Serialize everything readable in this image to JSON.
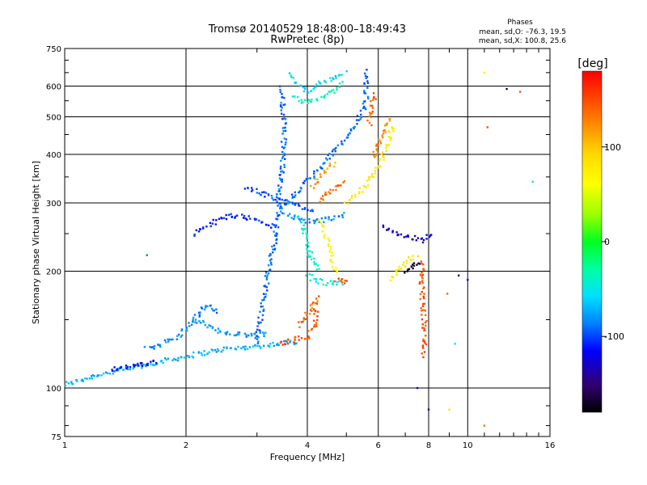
{
  "chart_data": {
    "type": "scatter",
    "title": "Tromsø 20140529 18:48:00–18:49:43",
    "subtitle": "RwPretec (8p)",
    "stats": {
      "heading": "Phases",
      "line1": "mean, sd,O: –76.3, 19.5",
      "line2": "mean, sd,X: 100.8, 25.6"
    },
    "xlabel": "Frequency [MHz]",
    "ylabel": "Stationary phase Virtual Height [km]",
    "xscale": "log",
    "yscale": "log",
    "xlim": [
      1,
      16
    ],
    "ylim": [
      75,
      750
    ],
    "xticks": [
      1,
      2,
      4,
      6,
      8,
      10,
      16
    ],
    "xtick_labels": [
      "1",
      "2",
      "4",
      "6",
      "8",
      "10",
      "16"
    ],
    "yticks": [
      75,
      100,
      200,
      300,
      400,
      500,
      600,
      750
    ],
    "ytick_labels": [
      "75",
      "100",
      "200",
      "300",
      "400",
      "500",
      "600",
      "750"
    ],
    "grid": true,
    "colorbar": {
      "label": "[deg]",
      "range": [
        -180,
        180
      ],
      "ticks": [
        100,
        0,
        -100
      ],
      "tick_labels": [
        "100",
        "0",
        "-100"
      ]
    },
    "traces": [
      {
        "x": [
          1.0,
          1.2,
          1.5,
          1.8,
          2.1,
          2.5,
          3.0,
          3.4,
          3.8
        ],
        "y": [
          102,
          108,
          113,
          118,
          122,
          126,
          128,
          130,
          132
        ],
        "phase": -75
      },
      {
        "x": [
          1.3,
          1.5,
          1.7
        ],
        "y": [
          112,
          114,
          117
        ],
        "phase": -120
      },
      {
        "x": [
          1.6,
          1.9,
          2.1,
          2.4,
          2.8,
          3.2
        ],
        "y": [
          126,
          135,
          150,
          140,
          137,
          138
        ],
        "phase": -85
      },
      {
        "x": [
          2.1,
          2.3,
          2.6,
          3.0,
          3.3
        ],
        "y": [
          250,
          265,
          280,
          272,
          260
        ],
        "phase": -110
      },
      {
        "x": [
          3.0,
          3.1,
          3.2,
          3.3,
          3.35,
          3.4,
          3.4,
          3.45,
          3.5,
          3.5,
          3.45
        ],
        "y": [
          130,
          165,
          200,
          230,
          260,
          290,
          320,
          350,
          400,
          500,
          600
        ],
        "phase": -95
      },
      {
        "x": [
          3.4,
          3.6,
          3.8,
          4.0,
          4.3,
          4.6,
          5.0,
          5.3,
          5.5,
          5.6,
          5.6,
          5.55
        ],
        "y": [
          290,
          305,
          320,
          340,
          370,
          400,
          440,
          480,
          520,
          560,
          620,
          660
        ],
        "phase": -95
      },
      {
        "x": [
          3.5,
          3.7,
          3.9,
          4.1,
          4.4,
          4.7,
          5.0
        ],
        "y": [
          285,
          275,
          270,
          268,
          271,
          276,
          282
        ],
        "phase": -85
      },
      {
        "x": [
          3.6,
          3.8,
          4.0,
          4.2,
          4.5,
          4.8,
          5.0
        ],
        "y": [
          640,
          600,
          585,
          600,
          620,
          640,
          650
        ],
        "phase": -60
      },
      {
        "x": [
          3.7,
          3.9,
          4.1,
          4.4,
          4.7,
          4.9
        ],
        "y": [
          560,
          545,
          550,
          565,
          590,
          620
        ],
        "phase": -40
      },
      {
        "x": [
          2.8,
          3.0,
          3.3,
          3.6,
          3.8,
          4.0,
          4.2
        ],
        "y": [
          330,
          320,
          310,
          300,
          295,
          290,
          287
        ],
        "phase": -100
      },
      {
        "x": [
          3.8,
          3.9,
          4.0,
          4.1,
          4.3
        ],
        "y": [
          280,
          260,
          235,
          215,
          200
        ],
        "phase": -45
      },
      {
        "x": [
          4.0,
          4.2,
          4.4,
          4.6,
          4.8,
          5.0
        ],
        "y": [
          195,
          190,
          187,
          186,
          187,
          186
        ],
        "phase": -50
      },
      {
        "x": [
          3.4,
          3.6,
          3.8,
          4.0,
          4.1,
          4.2,
          4.2
        ],
        "y": [
          130,
          132,
          134,
          135,
          140,
          150,
          165
        ],
        "phase": 150
      },
      {
        "x": [
          3.8,
          3.9,
          4.0,
          4.1,
          4.2,
          4.3
        ],
        "y": [
          145,
          150,
          155,
          160,
          165,
          172
        ],
        "phase": 140
      },
      {
        "x": [
          4.3,
          4.5,
          4.8,
          5.0
        ],
        "y": [
          300,
          320,
          335,
          340
        ],
        "phase": 140
      },
      {
        "x": [
          4.1,
          4.3,
          4.5,
          4.7
        ],
        "y": [
          330,
          350,
          370,
          380
        ],
        "phase": 125
      },
      {
        "x": [
          4.3,
          4.4,
          4.5,
          4.6,
          4.7
        ],
        "y": [
          270,
          255,
          235,
          215,
          195
        ],
        "phase": 75
      },
      {
        "x": [
          4.7,
          4.9,
          5.0
        ],
        "y": [
          190,
          188,
          186
        ],
        "phase": 150
      },
      {
        "x": [
          5.0,
          5.4,
          5.7,
          6.0,
          6.2,
          6.4,
          6.5
        ],
        "y": [
          300,
          320,
          345,
          370,
          400,
          440,
          480
        ],
        "phase": 90
      },
      {
        "x": [
          5.8,
          6.0,
          6.2,
          6.4
        ],
        "y": [
          390,
          420,
          460,
          500
        ],
        "phase": 130
      },
      {
        "x": [
          5.7,
          5.8,
          5.9
        ],
        "y": [
          480,
          540,
          580
        ],
        "phase": 145
      },
      {
        "x": [
          6.5,
          6.7,
          7.0,
          7.2,
          7.5
        ],
        "y": [
          190,
          200,
          210,
          215,
          220
        ],
        "phase": 90
      },
      {
        "x": [
          7.0,
          7.2,
          7.4,
          7.6
        ],
        "y": [
          200,
          205,
          208,
          210
        ],
        "phase": -170
      },
      {
        "x": [
          7.7,
          7.7,
          7.8,
          7.8
        ],
        "y": [
          210,
          180,
          150,
          120
        ],
        "phase": 150
      },
      {
        "x": [
          2.1,
          2.2,
          2.3,
          2.4
        ],
        "y": [
          150,
          160,
          165,
          155
        ],
        "phase": -90
      },
      {
        "x": [
          6.2,
          6.6,
          7.1,
          7.7,
          8.3
        ],
        "y": [
          260,
          250,
          245,
          240,
          250
        ],
        "phase": -130
      }
    ],
    "scattered_points": [
      {
        "x": 11.0,
        "y": 650,
        "phase": 80
      },
      {
        "x": 12.5,
        "y": 590,
        "phase": -160
      },
      {
        "x": 13.5,
        "y": 580,
        "phase": 150
      },
      {
        "x": 11.2,
        "y": 470,
        "phase": 150
      },
      {
        "x": 14.5,
        "y": 340,
        "phase": -60
      },
      {
        "x": 9.5,
        "y": 195,
        "phase": -150
      },
      {
        "x": 10.0,
        "y": 190,
        "phase": -120
      },
      {
        "x": 11.0,
        "y": 80,
        "phase": 140
      },
      {
        "x": 1.6,
        "y": 220,
        "phase": -90
      },
      {
        "x": 9.3,
        "y": 130,
        "phase": -60
      },
      {
        "x": 8.9,
        "y": 175,
        "phase": 140
      },
      {
        "x": 9.0,
        "y": 88,
        "phase": 100
      },
      {
        "x": 7.5,
        "y": 100,
        "phase": -120
      },
      {
        "x": 8.0,
        "y": 88,
        "phase": -140
      }
    ]
  }
}
